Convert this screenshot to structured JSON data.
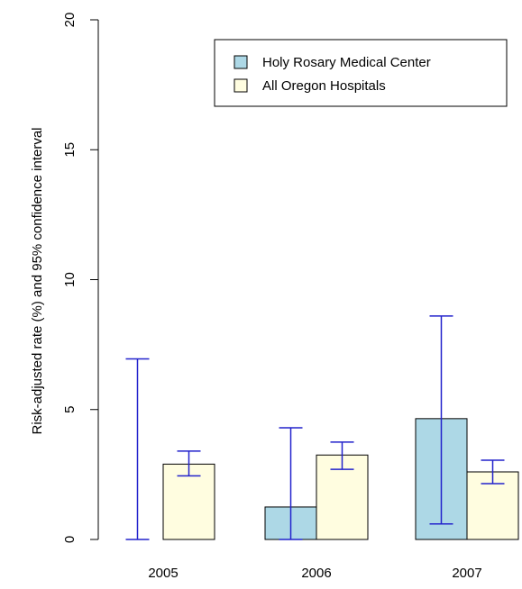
{
  "chart_data": {
    "type": "bar",
    "title": "",
    "xlabel": "",
    "ylabel": "Risk-adjusted rate (%) and 95% confidence interval",
    "ylim": [
      0,
      20
    ],
    "yticks": [
      "0",
      "5",
      "10",
      "15",
      "20"
    ],
    "categories": [
      "2005",
      "2006",
      "2007"
    ],
    "legend_position": "top-right",
    "error_bar_color": "#2222cc",
    "series": [
      {
        "name": "Holy Rosary Medical Center",
        "color": "#add8e6",
        "values": [
          0,
          1.25,
          4.65
        ],
        "ci_low": [
          0,
          0,
          0.6
        ],
        "ci_high": [
          6.95,
          4.3,
          8.6
        ]
      },
      {
        "name": "All Oregon Hospitals",
        "color": "#fffde0",
        "values": [
          2.9,
          3.25,
          2.6
        ],
        "ci_low": [
          2.45,
          2.7,
          2.15
        ],
        "ci_high": [
          3.4,
          3.75,
          3.05
        ]
      }
    ]
  }
}
